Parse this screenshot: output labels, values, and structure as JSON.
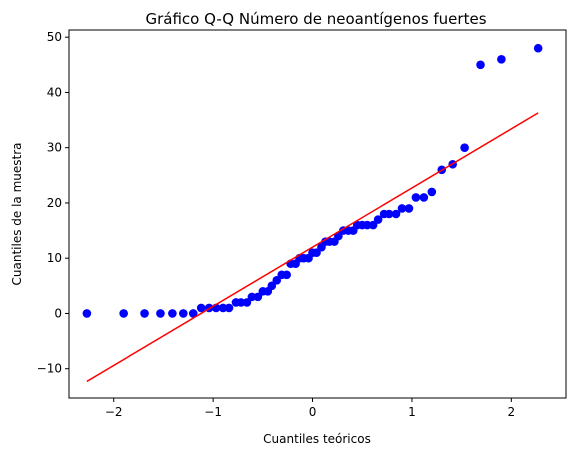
{
  "chart_data": {
    "type": "scatter",
    "title": "Gráfico Q-Q Número de neoantígenos fuertes",
    "xlabel": "Cuantiles teóricos",
    "ylabel": "Cuantiles de la muestra",
    "xlim": [
      -2.45,
      2.55
    ],
    "ylim": [
      -15.3,
      51.3
    ],
    "xticks": [
      -2,
      -1,
      0,
      1,
      2
    ],
    "yticks": [
      -10,
      0,
      10,
      20,
      30,
      40,
      50
    ],
    "grid": false,
    "colors": {
      "points": "#0000ff",
      "line": "#ff0000"
    },
    "series": [
      {
        "kind": "points",
        "points": [
          [
            -2.27,
            0
          ],
          [
            -1.9,
            0
          ],
          [
            -1.69,
            0
          ],
          [
            -1.53,
            0
          ],
          [
            -1.41,
            0
          ],
          [
            -1.3,
            0
          ],
          [
            -1.2,
            0
          ],
          [
            -1.12,
            1
          ],
          [
            -1.04,
            1
          ],
          [
            -0.97,
            1
          ],
          [
            -0.9,
            1
          ],
          [
            -0.84,
            1
          ],
          [
            -0.77,
            2
          ],
          [
            -0.72,
            2
          ],
          [
            -0.66,
            2
          ],
          [
            -0.61,
            3
          ],
          [
            -0.55,
            3
          ],
          [
            -0.5,
            4
          ],
          [
            -0.45,
            4
          ],
          [
            -0.41,
            5
          ],
          [
            -0.36,
            6
          ],
          [
            -0.31,
            7
          ],
          [
            -0.26,
            7
          ],
          [
            -0.22,
            9
          ],
          [
            -0.17,
            9
          ],
          [
            -0.13,
            10
          ],
          [
            -0.09,
            10
          ],
          [
            -0.04,
            10
          ],
          [
            0.0,
            11
          ],
          [
            0.04,
            11
          ],
          [
            0.09,
            12
          ],
          [
            0.13,
            13
          ],
          [
            0.17,
            13
          ],
          [
            0.22,
            13
          ],
          [
            0.26,
            14
          ],
          [
            0.31,
            15
          ],
          [
            0.36,
            15
          ],
          [
            0.41,
            15
          ],
          [
            0.45,
            16
          ],
          [
            0.5,
            16
          ],
          [
            0.55,
            16
          ],
          [
            0.61,
            16
          ],
          [
            0.66,
            17
          ],
          [
            0.72,
            18
          ],
          [
            0.77,
            18
          ],
          [
            0.84,
            18
          ],
          [
            0.9,
            19
          ],
          [
            0.97,
            19
          ],
          [
            1.04,
            21
          ],
          [
            1.12,
            21
          ],
          [
            1.2,
            22
          ],
          [
            1.3,
            26
          ],
          [
            1.41,
            27
          ],
          [
            1.53,
            30
          ],
          [
            1.69,
            45
          ],
          [
            1.9,
            46
          ],
          [
            2.27,
            48
          ]
        ]
      },
      {
        "kind": "line",
        "points": [
          [
            -2.27,
            -12.3
          ],
          [
            2.27,
            36.3
          ]
        ]
      }
    ]
  }
}
